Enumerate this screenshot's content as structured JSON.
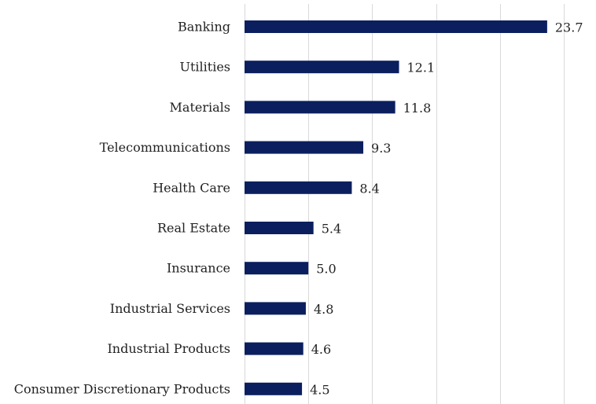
{
  "chart_data": {
    "type": "bar",
    "orientation": "horizontal",
    "categories": [
      "Banking",
      "Utilities",
      "Materials",
      "Telecommunications",
      "Health Care",
      "Real Estate",
      "Insurance",
      "Industrial Services",
      "Industrial Products",
      "Consumer Discretionary Products"
    ],
    "values": [
      23.7,
      12.1,
      11.8,
      9.3,
      8.4,
      5.4,
      5.0,
      4.8,
      4.6,
      4.5
    ],
    "value_labels": [
      "23.7",
      "12.1",
      "11.8",
      "9.3",
      "8.4",
      "5.4",
      "5.0",
      "4.8",
      "4.6",
      "4.5"
    ],
    "xlim": [
      0,
      25
    ],
    "grid": true,
    "bar_color": "#0b1f5e"
  }
}
